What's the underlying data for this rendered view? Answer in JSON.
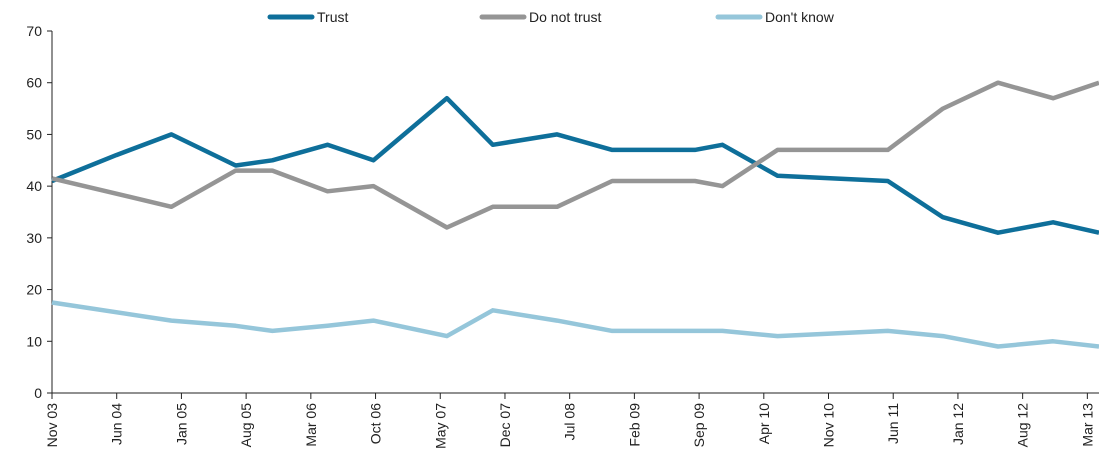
{
  "chart_data": {
    "type": "line",
    "title": "",
    "xlabel": "",
    "ylabel": "",
    "ylim": [
      0,
      70
    ],
    "yticks": [
      0,
      10,
      20,
      30,
      40,
      50,
      60,
      70
    ],
    "grid": false,
    "legend_placement": "top",
    "x_tick_labels": [
      "Nov 03",
      "Jun 04",
      "Jan 05",
      "Aug 05",
      "Mar 06",
      "Oct 06",
      "May 07",
      "Dec 07",
      "Jul 08",
      "Feb 09",
      "Sep 09",
      "Apr 10",
      "Nov 10",
      "Jun 11",
      "Jan 12",
      "Aug 12",
      "Mar 13"
    ],
    "x_range": [
      "2003-11",
      "2013-05"
    ],
    "series": [
      {
        "name": "Trust",
        "color": "#0e6f9a",
        "points": [
          {
            "x": "2003-11",
            "y": 41
          },
          {
            "x": "2004-06",
            "y": 46
          },
          {
            "x": "2004-12",
            "y": 50
          },
          {
            "x": "2005-07",
            "y": 44
          },
          {
            "x": "2005-11",
            "y": 45
          },
          {
            "x": "2006-05",
            "y": 48
          },
          {
            "x": "2006-10",
            "y": 45
          },
          {
            "x": "2007-06",
            "y": 57
          },
          {
            "x": "2007-11",
            "y": 48
          },
          {
            "x": "2008-06",
            "y": 50
          },
          {
            "x": "2008-12",
            "y": 47
          },
          {
            "x": "2009-09",
            "y": 47
          },
          {
            "x": "2009-12",
            "y": 48
          },
          {
            "x": "2010-06",
            "y": 42
          },
          {
            "x": "2011-06",
            "y": 41
          },
          {
            "x": "2011-12",
            "y": 34
          },
          {
            "x": "2012-06",
            "y": 31
          },
          {
            "x": "2012-12",
            "y": 33
          },
          {
            "x": "2013-05",
            "y": 31
          }
        ]
      },
      {
        "name": "Do not trust",
        "color": "#959595",
        "points": [
          {
            "x": "2003-11",
            "y": 41.5
          },
          {
            "x": "2004-12",
            "y": 36
          },
          {
            "x": "2005-07",
            "y": 43
          },
          {
            "x": "2005-11",
            "y": 43
          },
          {
            "x": "2006-05",
            "y": 39
          },
          {
            "x": "2006-10",
            "y": 40
          },
          {
            "x": "2007-06",
            "y": 32
          },
          {
            "x": "2007-11",
            "y": 36
          },
          {
            "x": "2008-06",
            "y": 36
          },
          {
            "x": "2008-12",
            "y": 41
          },
          {
            "x": "2009-09",
            "y": 41
          },
          {
            "x": "2009-12",
            "y": 40
          },
          {
            "x": "2010-06",
            "y": 47
          },
          {
            "x": "2011-06",
            "y": 47
          },
          {
            "x": "2011-12",
            "y": 55
          },
          {
            "x": "2012-06",
            "y": 60
          },
          {
            "x": "2012-12",
            "y": 57
          },
          {
            "x": "2013-05",
            "y": 60
          }
        ]
      },
      {
        "name": "Don't know",
        "color": "#95c6da",
        "points": [
          {
            "x": "2003-11",
            "y": 17.5
          },
          {
            "x": "2004-12",
            "y": 14
          },
          {
            "x": "2005-07",
            "y": 13
          },
          {
            "x": "2005-11",
            "y": 12
          },
          {
            "x": "2006-05",
            "y": 13
          },
          {
            "x": "2006-10",
            "y": 14
          },
          {
            "x": "2007-06",
            "y": 11
          },
          {
            "x": "2007-11",
            "y": 16
          },
          {
            "x": "2008-06",
            "y": 14
          },
          {
            "x": "2008-12",
            "y": 12
          },
          {
            "x": "2009-09",
            "y": 12
          },
          {
            "x": "2009-12",
            "y": 12
          },
          {
            "x": "2010-06",
            "y": 11
          },
          {
            "x": "2011-06",
            "y": 12
          },
          {
            "x": "2011-12",
            "y": 11
          },
          {
            "x": "2012-06",
            "y": 9
          },
          {
            "x": "2012-12",
            "y": 10
          },
          {
            "x": "2013-05",
            "y": 9
          }
        ]
      }
    ]
  }
}
